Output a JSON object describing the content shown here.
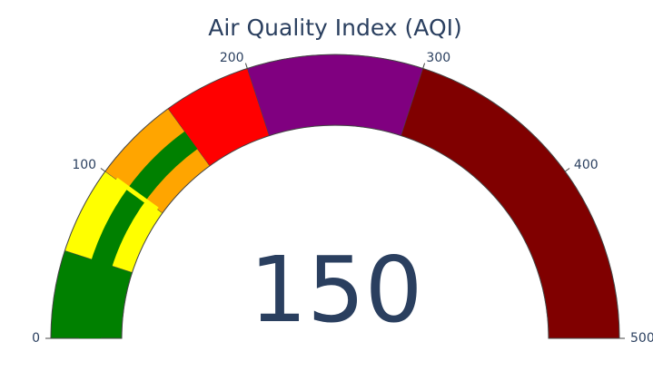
{
  "chart_data": {
    "type": "gauge",
    "title": "Air Quality Index (AQI)",
    "value": 150,
    "value_label": "150",
    "range": [
      0,
      500
    ],
    "ticks": [
      {
        "value": 0,
        "label": "0"
      },
      {
        "value": 100,
        "label": "100"
      },
      {
        "value": 200,
        "label": "200"
      },
      {
        "value": 300,
        "label": "300"
      },
      {
        "value": 400,
        "label": "400"
      },
      {
        "value": 500,
        "label": "500"
      }
    ],
    "steps": [
      {
        "range": [
          0,
          50
        ],
        "color": "#008000"
      },
      {
        "range": [
          50,
          100
        ],
        "color": "#ffff00"
      },
      {
        "range": [
          100,
          150
        ],
        "color": "#ffa500"
      },
      {
        "range": [
          150,
          200
        ],
        "color": "#ff0000"
      },
      {
        "range": [
          200,
          300
        ],
        "color": "#800080"
      },
      {
        "range": [
          300,
          500
        ],
        "color": "#800000"
      }
    ],
    "bar": {
      "color": "#008000"
    },
    "threshold": {
      "color": "#ffff00",
      "value": 100
    }
  }
}
